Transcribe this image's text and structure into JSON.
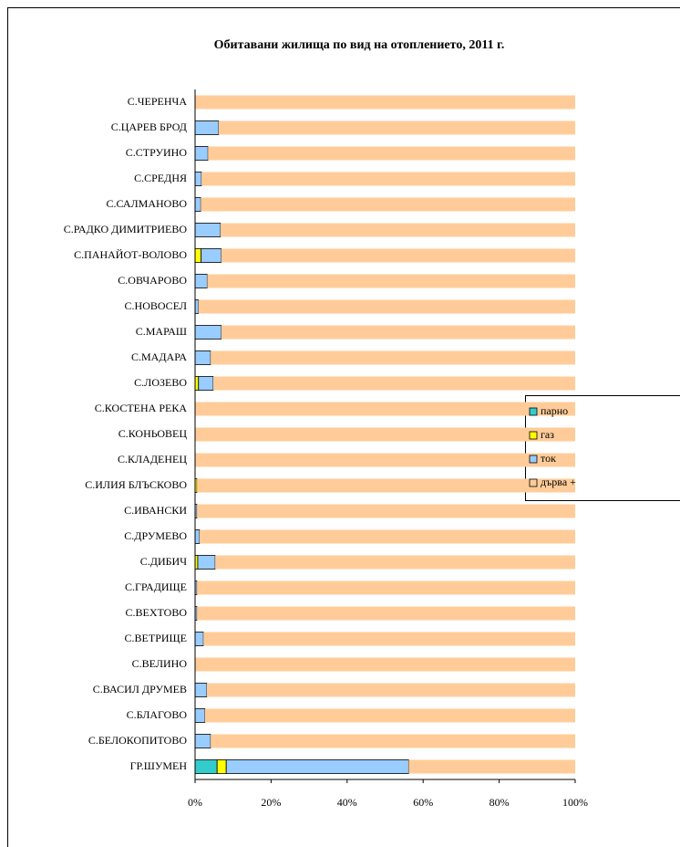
{
  "chart_data": {
    "type": "stacked_barh",
    "title": "Обитавани жилища по вид на отоплението, 2011 г.",
    "categories": [
      "С.ЧЕРЕНЧА",
      "С.ЦАРЕВ БРОД",
      "С.СТРУИНО",
      "С.СРЕДНЯ",
      "С.САЛМАНОВО",
      "С.РАДКО ДИМИТРИЕВО",
      "С.ПАНАЙОТ-ВОЛОВО",
      "С.ОВЧАРОВО",
      "С.НОВОСЕЛ",
      "С.МАРАШ",
      "С.МАДАРА",
      "С.ЛОЗЕВО",
      "С.КОСТЕНА РЕКА",
      "С.КОНЬОВЕЦ",
      "С.КЛАДЕНЕЦ",
      "С.ИЛИЯ БЛЪСКОВО",
      "С.ИВАНСКИ",
      "С.ДРУМЕВО",
      "С.ДИБИЧ",
      "С.ГРАДИЩЕ",
      "С.ВЕХТОВО",
      "С.ВЕТРИЩЕ",
      "С.ВЕЛИНО",
      "С.ВАСИЛ ДРУМЕВ",
      "С.БЛАГОВО",
      "С.БЕЛОКОПИТОВО",
      "ГР.ШУМЕН"
    ],
    "series": [
      {
        "name": "парно",
        "color": "#33CCCC",
        "values": [
          0,
          0,
          0,
          0,
          0,
          0,
          0,
          0,
          0,
          0,
          0,
          0,
          0,
          0,
          0,
          0,
          0,
          0,
          0,
          0,
          0,
          0,
          0,
          0,
          0,
          0,
          5.8
        ]
      },
      {
        "name": "газ",
        "color": "#FFFF00",
        "values": [
          0,
          0,
          0,
          0,
          0,
          0,
          1.6,
          0,
          0,
          0,
          0,
          0.9,
          0,
          0,
          0,
          0.5,
          0,
          0,
          0.7,
          0,
          0,
          0,
          0,
          0,
          0,
          0,
          2.4
        ]
      },
      {
        "name": "ток",
        "color": "#99CCFF",
        "values": [
          0,
          6.2,
          3.4,
          1.7,
          1.5,
          6.7,
          5.3,
          3.2,
          0.9,
          6.9,
          4.1,
          3.9,
          0,
          0,
          0,
          0,
          0.5,
          1.2,
          4.6,
          0.5,
          0.5,
          2.2,
          0,
          3.1,
          2.6,
          4.1,
          48.0
        ]
      },
      {
        "name": "дърва +",
        "color": "#FFCC99",
        "values": [
          100,
          93.8,
          96.6,
          98.3,
          98.5,
          93.3,
          93.1,
          96.8,
          99.1,
          93.1,
          95.9,
          95.2,
          100,
          100,
          100,
          99.5,
          99.5,
          98.8,
          94.7,
          99.5,
          99.5,
          97.8,
          100,
          96.9,
          97.4,
          95.9,
          43.8
        ]
      }
    ],
    "xlim": [
      0,
      100
    ],
    "xticks": [
      {
        "value": 0,
        "label": "0%"
      },
      {
        "value": 20,
        "label": "20%"
      },
      {
        "value": 40,
        "label": "40%"
      },
      {
        "value": 60,
        "label": "60%"
      },
      {
        "value": 80,
        "label": "80%"
      },
      {
        "value": 100,
        "label": "100%"
      }
    ]
  }
}
